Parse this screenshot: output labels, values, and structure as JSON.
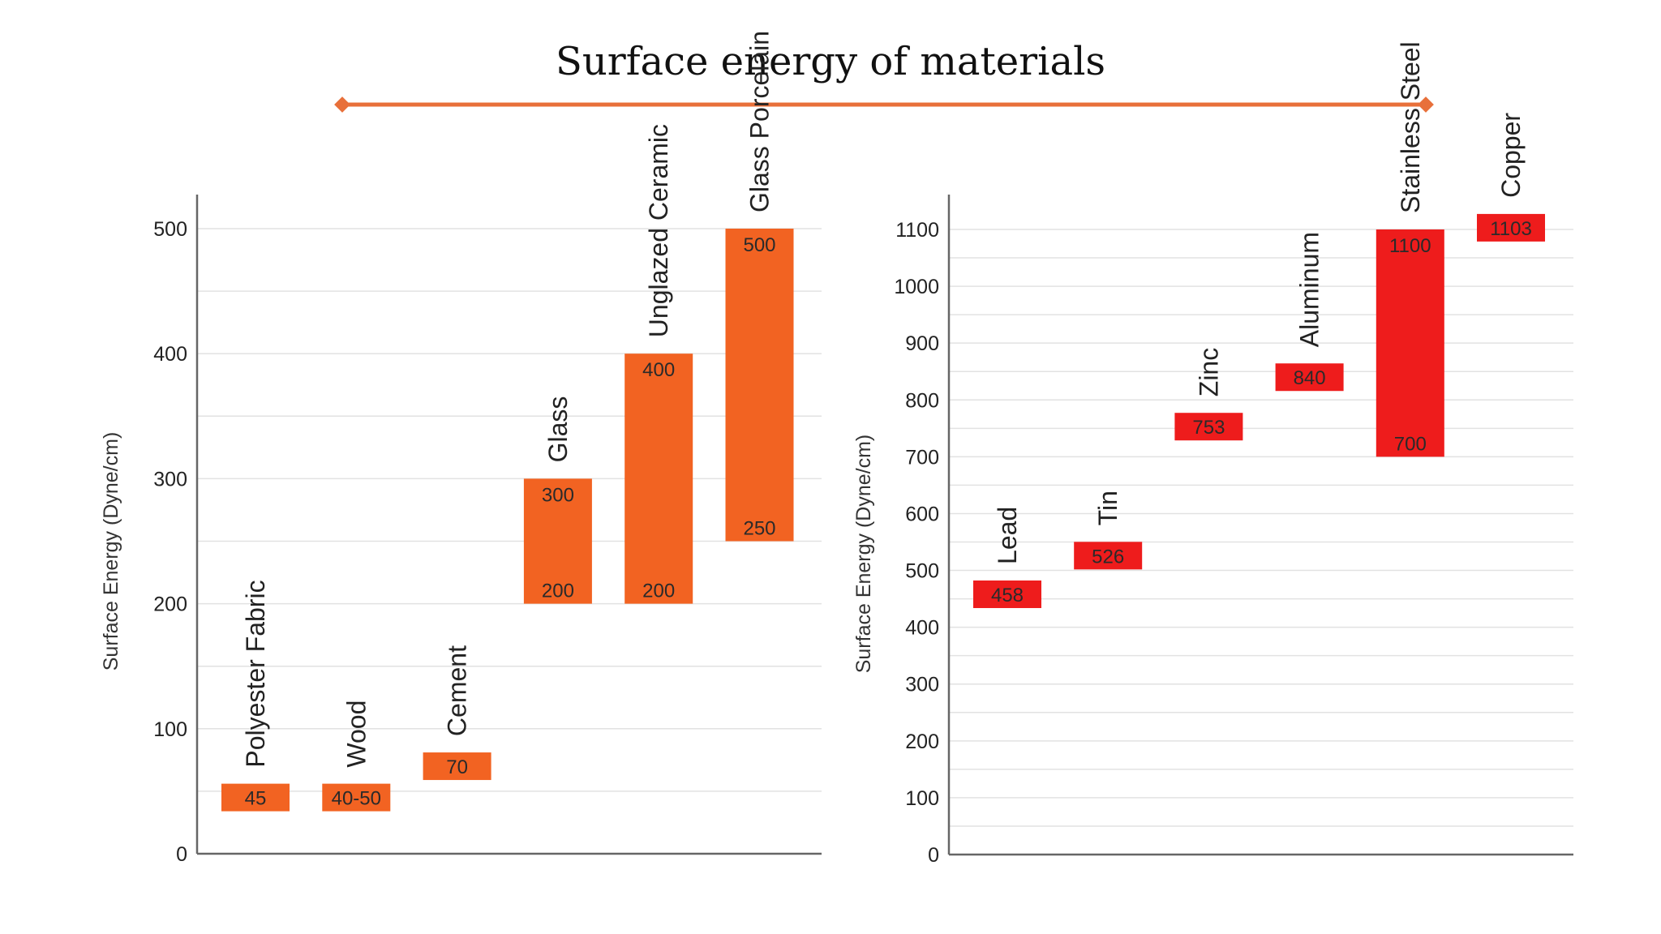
{
  "title": "Surface energy of materials",
  "colors": {
    "accent": "#e8703a",
    "left_bar": "#f26322",
    "right_bar": "#ee1c1c",
    "grid": "#e2e2e2",
    "axis": "#666666"
  },
  "chart_data": [
    {
      "type": "bar",
      "bar_style": "floating range",
      "ylabel": "Surface Energy (Dyne/cm)",
      "ylim": [
        0,
        500
      ],
      "yticks": [
        0,
        100,
        200,
        300,
        400,
        500
      ],
      "grid": true,
      "categories": [
        "Polyester Fabric",
        "Wood",
        "Cement",
        "Glass",
        "Unglazed Ceramic",
        "Glass Porcelain"
      ],
      "ranges": [
        [
          45,
          45
        ],
        [
          40,
          50
        ],
        [
          70,
          70
        ],
        [
          200,
          300
        ],
        [
          200,
          400
        ],
        [
          250,
          500
        ]
      ],
      "data_labels": [
        [
          "45"
        ],
        [
          "40-50"
        ],
        [
          "70"
        ],
        [
          "200",
          "300"
        ],
        [
          "200",
          "400"
        ],
        [
          "250",
          "500"
        ]
      ]
    },
    {
      "type": "bar",
      "bar_style": "floating range",
      "ylabel": "Surface Energy (Dyne/cm)",
      "ylim": [
        0,
        1100
      ],
      "yticks": [
        0,
        100,
        200,
        300,
        400,
        500,
        600,
        700,
        800,
        900,
        1000,
        1100
      ],
      "grid": true,
      "categories": [
        "Lead",
        "Tin",
        "Zinc",
        "Aluminum",
        "Stainless Steel",
        "Copper"
      ],
      "ranges": [
        [
          458,
          458
        ],
        [
          526,
          526
        ],
        [
          753,
          753
        ],
        [
          840,
          840
        ],
        [
          700,
          1100
        ],
        [
          1103,
          1103
        ]
      ],
      "data_labels": [
        [
          "458"
        ],
        [
          "526"
        ],
        [
          "753"
        ],
        [
          "840"
        ],
        [
          "700",
          "1100"
        ],
        [
          "1103"
        ]
      ]
    }
  ]
}
